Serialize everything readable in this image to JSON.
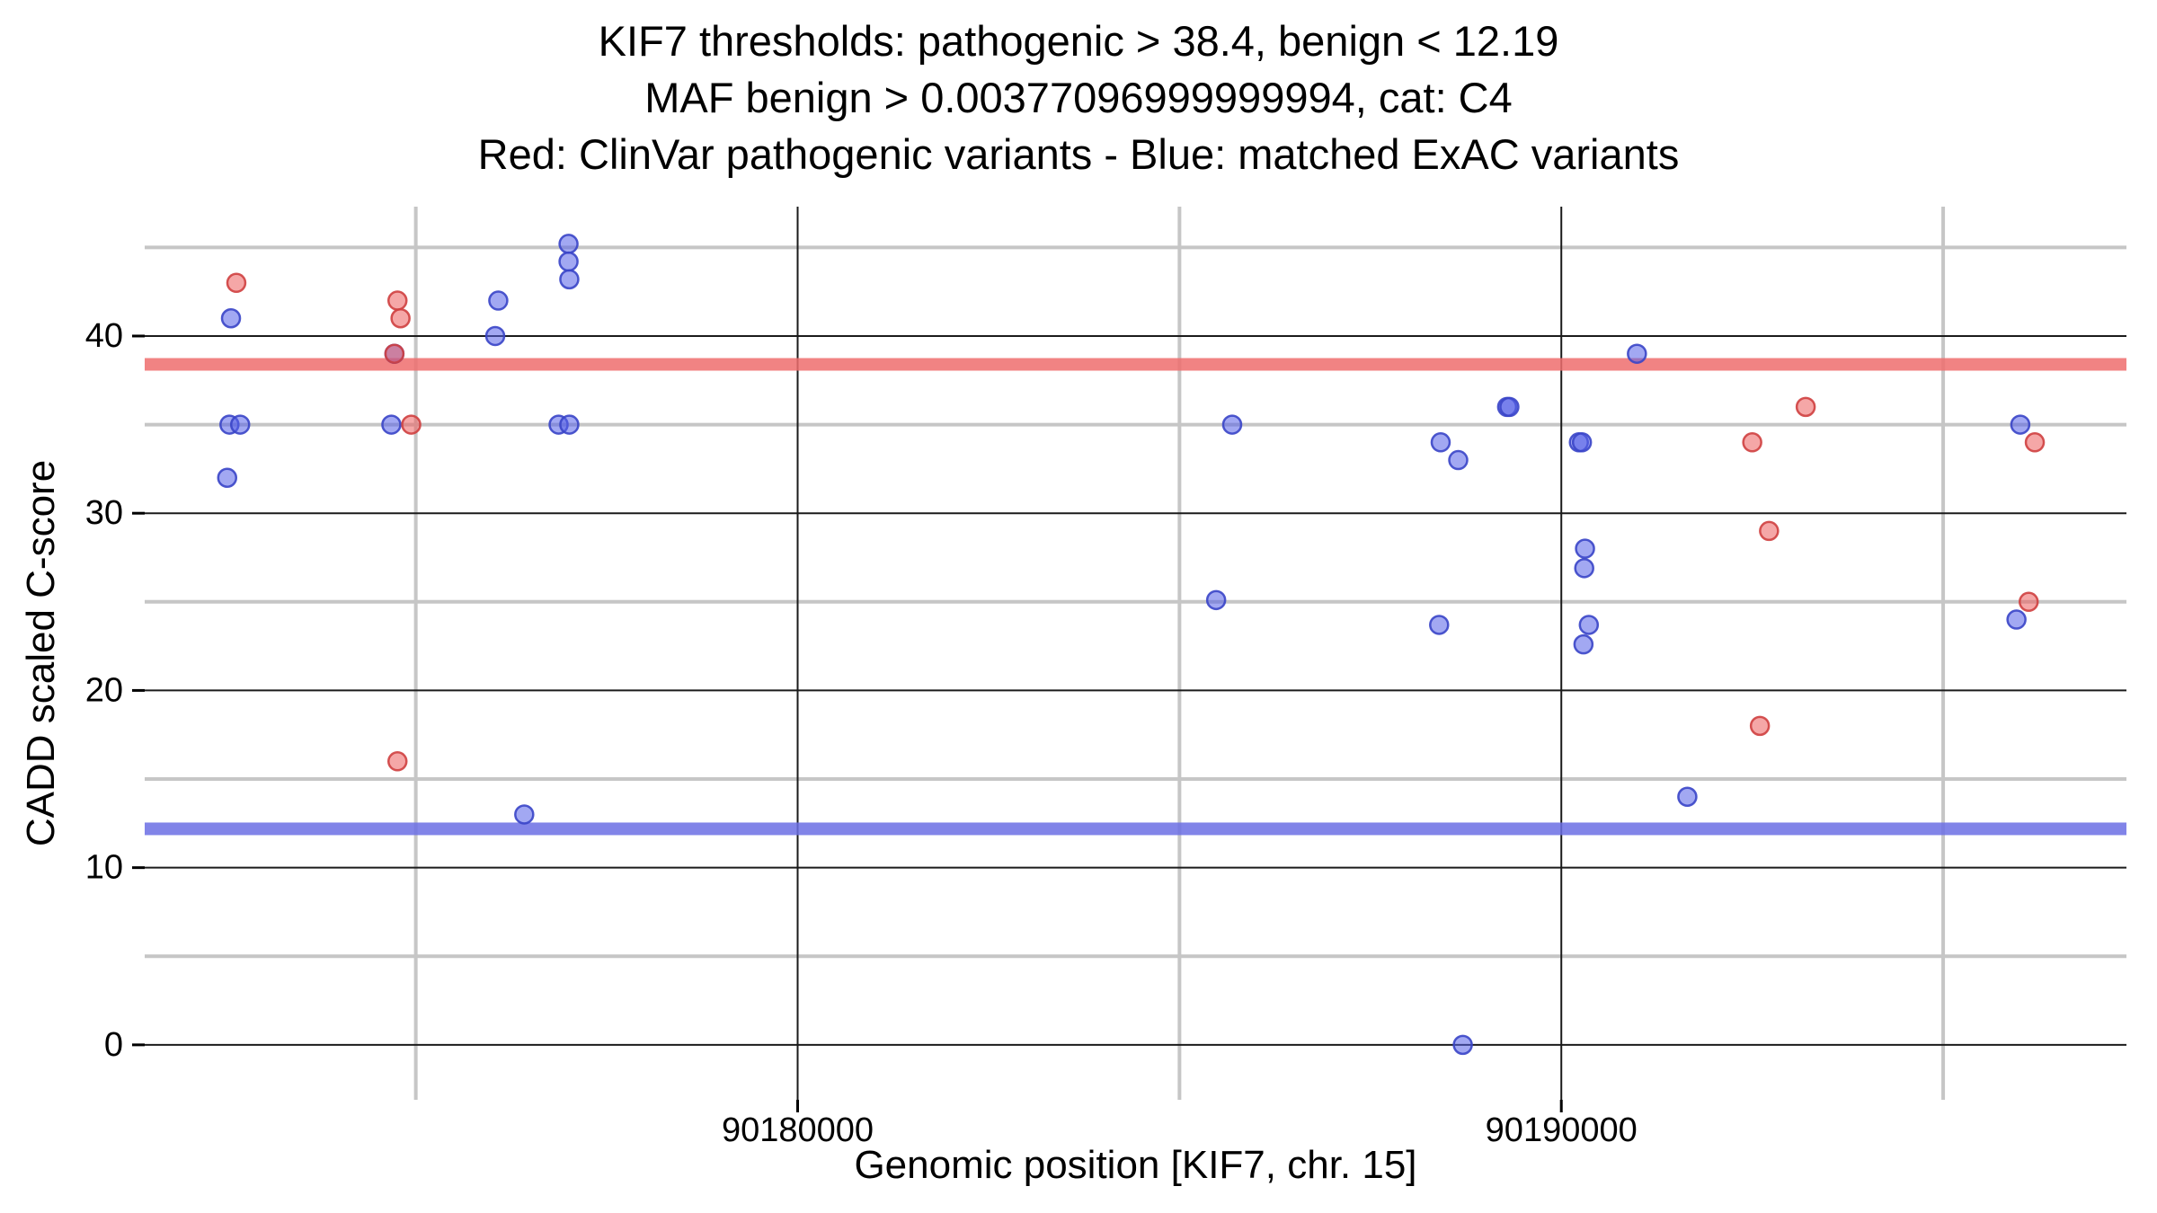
{
  "title": {
    "line1": "KIF7 thresholds: pathogenic > 38.4, benign < 12.19",
    "line2": "MAF benign > 0.00377096999999994, cat: C4",
    "line3": "Red: ClinVar pathogenic variants - Blue: matched ExAC variants"
  },
  "chart_data": {
    "type": "scatter",
    "title": "KIF7 thresholds: pathogenic > 38.4, benign < 12.19",
    "xlabel": "Genomic position [KIF7, chr. 15]",
    "ylabel": "CADD scaled C-score",
    "xlim": [
      90171450,
      90197400
    ],
    "ylim": [
      -3.1,
      47.3
    ],
    "x_ticks": [
      {
        "value": 90180000,
        "label": "90180000"
      },
      {
        "value": 90190000,
        "label": "90190000"
      }
    ],
    "x_minor_gridlines": [
      90175000,
      90185000,
      90195000
    ],
    "y_ticks": [
      {
        "value": 0,
        "label": "0"
      },
      {
        "value": 10,
        "label": "10"
      },
      {
        "value": 20,
        "label": "20"
      },
      {
        "value": 30,
        "label": "30"
      },
      {
        "value": 40,
        "label": "40"
      }
    ],
    "y_minor_gridlines": [
      5,
      15,
      25,
      35,
      45
    ],
    "grid": {
      "minor_color": "#c6c6c6",
      "major_color": "#1b1b1b"
    },
    "thresholds": [
      {
        "name": "pathogenic",
        "value": 38.4,
        "color": "#ef6d6d"
      },
      {
        "name": "benign",
        "value": 12.19,
        "color": "#6b6fe4"
      }
    ],
    "series": [
      {
        "name": "matched ExAC variants",
        "legend_hint": "Blue",
        "fill": "#5560e8",
        "stroke": "#3a45c8",
        "points": [
          [
            90172580,
            41
          ],
          [
            90172530,
            32
          ],
          [
            90172560,
            35
          ],
          [
            90172700,
            35
          ],
          [
            90174680,
            35
          ],
          [
            90174720,
            39
          ],
          [
            90176080,
            42
          ],
          [
            90176040,
            40
          ],
          [
            90176420,
            13
          ],
          [
            90177000,
            45.2
          ],
          [
            90177000,
            44.2
          ],
          [
            90177010,
            43.2
          ],
          [
            90176870,
            35
          ],
          [
            90177010,
            35
          ],
          [
            90185690,
            35
          ],
          [
            90185480,
            25.1
          ],
          [
            90188420,
            34
          ],
          [
            90188650,
            33
          ],
          [
            90188400,
            23.7
          ],
          [
            90189290,
            36
          ],
          [
            90189320,
            36
          ],
          [
            90188710,
            0
          ],
          [
            90190230,
            34
          ],
          [
            90190270,
            34
          ],
          [
            90190310,
            28
          ],
          [
            90190300,
            26.9
          ],
          [
            90190360,
            23.7
          ],
          [
            90190290,
            22.6
          ],
          [
            90190990,
            39
          ],
          [
            90191650,
            14
          ],
          [
            90196010,
            35
          ],
          [
            90195960,
            24
          ]
        ]
      },
      {
        "name": "ClinVar pathogenic variants",
        "legend_hint": "Red",
        "fill": "#ec5f5f",
        "stroke": "#cf4040",
        "points": [
          [
            90172650,
            43
          ],
          [
            90174760,
            42
          ],
          [
            90174800,
            41
          ],
          [
            90174720,
            39
          ],
          [
            90174940,
            35
          ],
          [
            90174760,
            16
          ],
          [
            90193200,
            36
          ],
          [
            90192500,
            34
          ],
          [
            90192720,
            29
          ],
          [
            90192600,
            18
          ],
          [
            90196200,
            34
          ],
          [
            90196120,
            25
          ]
        ]
      }
    ]
  }
}
